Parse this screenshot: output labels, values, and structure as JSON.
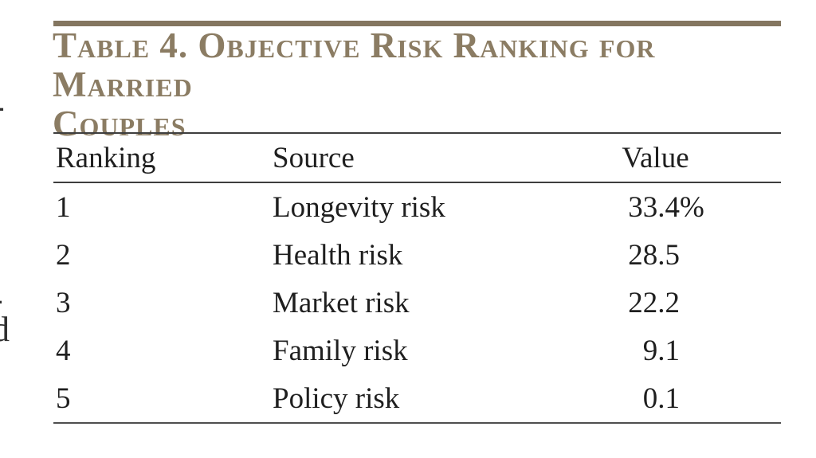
{
  "accent": {
    "bar_color": "#847660",
    "title_color": "#8b7c63",
    "rule_color": "#3e3e3e",
    "body_text_color": "#1f1f1f"
  },
  "table": {
    "title": "Table 4. Objective Risk Ranking for Married\nCouples",
    "columns": [
      "Ranking",
      "Source",
      "Value"
    ],
    "rows": [
      {
        "ranking": "1",
        "source": "Longevity risk",
        "value": "33.4",
        "suffix": "%"
      },
      {
        "ranking": "2",
        "source": "Health risk",
        "value": "28.5",
        "suffix": ""
      },
      {
        "ranking": "3",
        "source": "Market risk",
        "value": "22.2",
        "suffix": ""
      },
      {
        "ranking": "4",
        "source": "Family risk",
        "value": "9.1",
        "suffix": ""
      },
      {
        "ranking": "5",
        "source": "Policy risk",
        "value": "0.1",
        "suffix": ""
      }
    ]
  },
  "margin_fragments": {
    "dash_top": "-",
    "dash_mid": "-",
    "partial_letter": "d"
  },
  "chart_data": {
    "type": "table",
    "title": "Table 4. Objective Risk Ranking for Married Couples",
    "columns": [
      "Ranking",
      "Source",
      "Value"
    ],
    "rows": [
      [
        1,
        "Longevity risk",
        "33.4%"
      ],
      [
        2,
        "Health risk",
        "28.5"
      ],
      [
        3,
        "Market risk",
        "22.2"
      ],
      [
        4,
        "Family risk",
        "9.1"
      ],
      [
        5,
        "Policy risk",
        "0.1"
      ]
    ]
  }
}
